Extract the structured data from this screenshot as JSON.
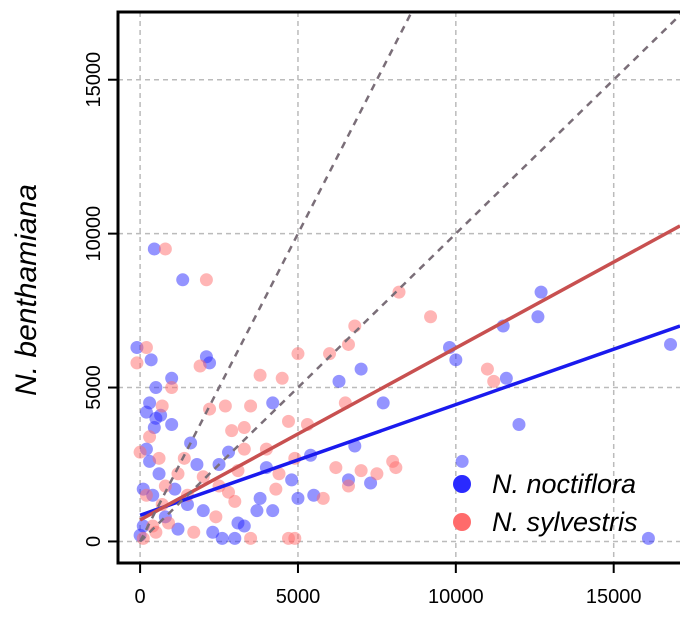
{
  "chart_data": {
    "type": "scatter",
    "ylabel": "N. benthamiana",
    "xlim": [
      -700,
      17100
    ],
    "ylim": [
      -700,
      17200
    ],
    "xticks": [
      0,
      5000,
      10000,
      15000
    ],
    "yticks": [
      0,
      5000,
      10000,
      15000
    ],
    "grid": true,
    "legend": "lower right",
    "series": [
      {
        "name": "N. noctiflora",
        "color": "#2a2aff",
        "x": [
          -100,
          450,
          1350,
          2100,
          2200,
          4200,
          6300,
          7000,
          7700,
          9800,
          10000,
          10200,
          11500,
          11600,
          12000,
          12600,
          12700,
          16100,
          16800,
          6600,
          7300,
          6800,
          5500,
          5000,
          4800,
          4000,
          3800,
          3300,
          3000,
          3100,
          2500,
          2000,
          1800,
          1500,
          1000,
          1000,
          500,
          300,
          200,
          600,
          400,
          100,
          0,
          800,
          1200,
          2300,
          200,
          450,
          650,
          300,
          500,
          350,
          100,
          1100,
          1600,
          2800,
          3700,
          5400,
          4200,
          2600
        ],
        "y": [
          6300,
          9500,
          8500,
          6000,
          5800,
          4500,
          5200,
          5600,
          4500,
          6300,
          5900,
          2600,
          7000,
          5300,
          3800,
          7300,
          8100,
          100,
          6400,
          2000,
          1900,
          3100,
          1500,
          1400,
          2000,
          2400,
          1400,
          500,
          100,
          600,
          2500,
          1000,
          2500,
          1200,
          5300,
          3800,
          4000,
          4500,
          3000,
          2200,
          1500,
          500,
          200,
          800,
          400,
          300,
          4200,
          3700,
          4100,
          2600,
          5000,
          5900,
          1700,
          1700,
          3200,
          2900,
          1000,
          2800,
          1000,
          100
        ]
      },
      {
        "name": "N. sylvestris",
        "color": "#ff6b6b",
        "x": [
          -100,
          200,
          800,
          2100,
          8200,
          9200,
          6800,
          6600,
          6000,
          5000,
          6500,
          4500,
          3800,
          3500,
          2700,
          2200,
          1900,
          1000,
          700,
          11000,
          11200,
          8000,
          8100,
          7500,
          7000,
          6600,
          5300,
          4900,
          4700,
          4400,
          4000,
          3300,
          3100,
          2800,
          2500,
          2000,
          1500,
          1200,
          700,
          400,
          100,
          0,
          300,
          600,
          900,
          1700,
          4700,
          4900,
          3500,
          2400,
          3000,
          4300,
          5800,
          1400,
          200,
          500,
          800,
          2900,
          3300,
          6200
        ],
        "y": [
          5800,
          6300,
          9500,
          8500,
          8100,
          7300,
          7000,
          6400,
          6100,
          6100,
          4500,
          5300,
          5400,
          4400,
          4400,
          4300,
          5700,
          5000,
          4400,
          5600,
          5200,
          2600,
          2400,
          2200,
          2300,
          1800,
          3800,
          2700,
          3900,
          2200,
          3000,
          3000,
          2300,
          1600,
          1800,
          2100,
          1500,
          2200,
          1200,
          500,
          100,
          2900,
          3400,
          2700,
          600,
          300,
          100,
          100,
          100,
          800,
          1300,
          1700,
          1400,
          2700,
          1500,
          300,
          1800,
          3600,
          3700,
          2400
        ]
      }
    ],
    "lines": [
      {
        "color": "#1a1aee",
        "x": [
          0,
          17100
        ],
        "y": [
          850,
          7000
        ]
      },
      {
        "color": "#c85050",
        "x": [
          0,
          17100
        ],
        "y": [
          700,
          10250
        ]
      },
      {
        "color": "#7a6e78",
        "dashed": true,
        "x": [
          0,
          8600
        ],
        "y": [
          0,
          17200
        ]
      },
      {
        "color": "#7a6e78",
        "dashed": true,
        "x": [
          0,
          17200
        ],
        "y": [
          0,
          17200
        ]
      }
    ]
  }
}
